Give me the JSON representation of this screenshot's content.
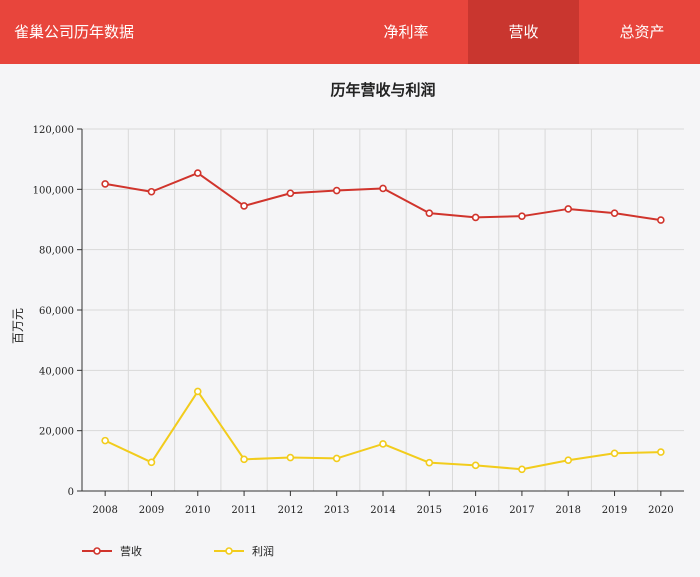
{
  "header": {
    "title": "雀巢公司历年数据",
    "tabs": [
      {
        "label": "净利率",
        "active": false
      },
      {
        "label": "营收",
        "active": true
      },
      {
        "label": "总资产",
        "active": false
      }
    ]
  },
  "colors": {
    "header_bg": "#e8453c",
    "active_tab_bg": "#c9362f",
    "revenue": "#d0342c",
    "profit": "#f2cc1c"
  },
  "chart_data": {
    "type": "line",
    "title": "历年营收与利润",
    "ylabel": "百万元",
    "xlabel": "",
    "ylim": [
      0,
      120000
    ],
    "yticks": [
      "0",
      "20,000",
      "40,000",
      "60,000",
      "80,000",
      "100,000",
      "120,000"
    ],
    "grid": true,
    "legend_position": "bottom-left",
    "categories": [
      "2008",
      "2009",
      "2010",
      "2011",
      "2012",
      "2013",
      "2014",
      "2015",
      "2016",
      "2017",
      "2018",
      "2019",
      "2020"
    ],
    "series": [
      {
        "name": "营收",
        "color": "#d0342c",
        "values": [
          101800,
          99200,
          105400,
          94500,
          98700,
          99600,
          100300,
          92100,
          90700,
          91100,
          93500,
          92100,
          89800
        ]
      },
      {
        "name": "利润",
        "color": "#f2cc1c",
        "values": [
          16700,
          9500,
          33000,
          10500,
          11100,
          10800,
          15600,
          9400,
          8500,
          7200,
          10200,
          12500,
          12900
        ]
      }
    ]
  }
}
